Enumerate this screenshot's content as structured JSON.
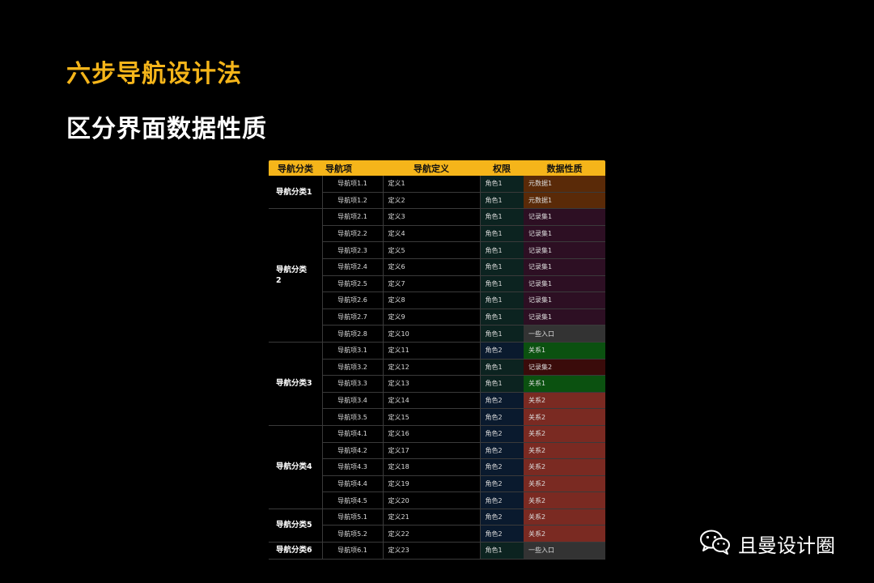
{
  "title_main": "六步导航设计法",
  "title_sub": "区分界面数据性质",
  "table": {
    "headers": [
      "导航分类",
      "导航项",
      "导航定义",
      "权限",
      "数据性质"
    ],
    "groups": [
      {
        "category": "导航分类1",
        "rows": [
          {
            "item": "导航项1.1",
            "def": "定义1",
            "perm": "角色1",
            "data": "元数据1",
            "data_type": "meta"
          },
          {
            "item": "导航项1.2",
            "def": "定义2",
            "perm": "角色1",
            "data": "元数据1",
            "data_type": "meta"
          }
        ]
      },
      {
        "category": "导航分类\n2",
        "rows": [
          {
            "item": "导航项2.1",
            "def": "定义3",
            "perm": "角色1",
            "data": "记录集1",
            "data_type": "rec1"
          },
          {
            "item": "导航项2.2",
            "def": "定义4",
            "perm": "角色1",
            "data": "记录集1",
            "data_type": "rec1"
          },
          {
            "item": "导航项2.3",
            "def": "定义5",
            "perm": "角色1",
            "data": "记录集1",
            "data_type": "rec1"
          },
          {
            "item": "导航项2.4",
            "def": "定义6",
            "perm": "角色1",
            "data": "记录集1",
            "data_type": "rec1"
          },
          {
            "item": "导航项2.5",
            "def": "定义7",
            "perm": "角色1",
            "data": "记录集1",
            "data_type": "rec1"
          },
          {
            "item": "导航项2.6",
            "def": "定义8",
            "perm": "角色1",
            "data": "记录集1",
            "data_type": "rec1"
          },
          {
            "item": "导航项2.7",
            "def": "定义9",
            "perm": "角色1",
            "data": "记录集1",
            "data_type": "rec1"
          },
          {
            "item": "导航项2.8",
            "def": "定义10",
            "perm": "角色1",
            "data": "一些入口",
            "data_type": "entry"
          }
        ]
      },
      {
        "category": "导航分类3",
        "rows": [
          {
            "item": "导航项3.1",
            "def": "定义11",
            "perm": "角色2",
            "data": "关系1",
            "data_type": "rel1"
          },
          {
            "item": "导航项3.2",
            "def": "定义12",
            "perm": "角色1",
            "data": "记录集2",
            "data_type": "rec2"
          },
          {
            "item": "导航项3.3",
            "def": "定义13",
            "perm": "角色1",
            "data": "关系1",
            "data_type": "rel1"
          },
          {
            "item": "导航项3.4",
            "def": "定义14",
            "perm": "角色2",
            "data": "关系2",
            "data_type": "rel2"
          },
          {
            "item": "导航项3.5",
            "def": "定义15",
            "perm": "角色2",
            "data": "关系2",
            "data_type": "rel2"
          }
        ]
      },
      {
        "category": "导航分类4",
        "rows": [
          {
            "item": "导航项4.1",
            "def": "定义16",
            "perm": "角色2",
            "data": "关系2",
            "data_type": "rel2"
          },
          {
            "item": "导航项4.2",
            "def": "定义17",
            "perm": "角色2",
            "data": "关系2",
            "data_type": "rel2"
          },
          {
            "item": "导航项4.3",
            "def": "定义18",
            "perm": "角色2",
            "data": "关系2",
            "data_type": "rel2"
          },
          {
            "item": "导航项4.4",
            "def": "定义19",
            "perm": "角色2",
            "data": "关系2",
            "data_type": "rel2"
          },
          {
            "item": "导航项4.5",
            "def": "定义20",
            "perm": "角色2",
            "data": "关系2",
            "data_type": "rel2"
          }
        ]
      },
      {
        "category": "导航分类5",
        "rows": [
          {
            "item": "导航项5.1",
            "def": "定义21",
            "perm": "角色2",
            "data": "关系2",
            "data_type": "rel2"
          },
          {
            "item": "导航项5.2",
            "def": "定义22",
            "perm": "角色2",
            "data": "关系2",
            "data_type": "rel2"
          }
        ]
      },
      {
        "category": "导航分类6",
        "rows": [
          {
            "item": "导航项6.1",
            "def": "定义23",
            "perm": "角色1",
            "data": "一些入口",
            "data_type": "entry"
          }
        ]
      }
    ]
  },
  "colors": {
    "accent": "#f5b51a",
    "meta": "#5a2a08",
    "rec1": "#2d0f23",
    "entry": "#333333",
    "rel1": "#0b5110",
    "rec2": "#3a0b0a",
    "rel2": "#7a2a22",
    "role1": "#0c2320",
    "role2": "#0a1a2e"
  },
  "brand": {
    "name": "且曼设计圈",
    "icon": "wechat-icon"
  }
}
